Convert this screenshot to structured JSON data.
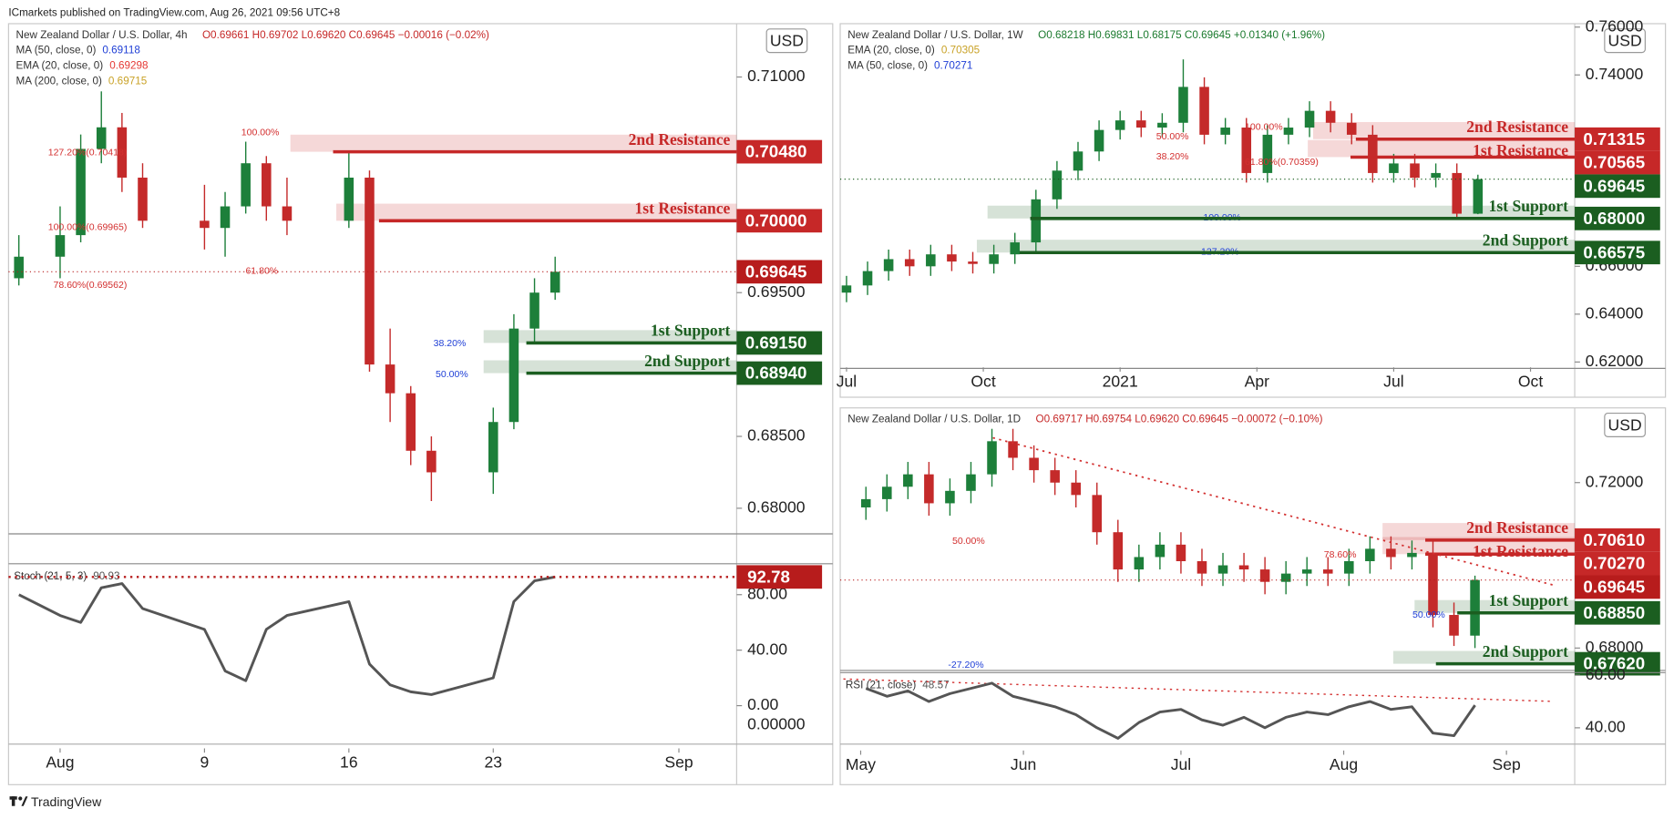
{
  "header": {
    "text": "ICmarkets published on TradingView.com, Aug 26, 2021 09:56 UTC+8",
    "footer": "TradingView"
  },
  "chart_data": [
    {
      "type": "candlestick",
      "title": "New Zealand Dollar / U.S. Dollar, 4h",
      "ohlc_text": "O0.69661 H0.69702 L0.69620 C0.69645 −0.00016 (−0.02%)",
      "ohlc_color": "#c62828",
      "currency": "USD",
      "legend": [
        {
          "name": "MA (50, close, 0)",
          "value": 0.69118,
          "color": "#1f3fd6"
        },
        {
          "name": "EMA (20, close, 0)",
          "value": 0.69298,
          "color": "#e53935"
        },
        {
          "name": "MA (200, close, 0)",
          "value": 0.69715,
          "color": "#c9a227"
        }
      ],
      "up_color": "#1d7f3a",
      "down_color": "#c42a2a",
      "x": [
        0,
        2,
        3,
        4,
        5,
        6,
        9,
        10,
        11,
        12,
        13,
        16,
        17,
        18,
        19,
        20,
        23,
        24,
        25,
        26
      ],
      "open": [
        0.696,
        0.6975,
        0.699,
        0.705,
        0.7065,
        0.703,
        0.7,
        0.6995,
        0.701,
        0.704,
        0.701,
        0.7,
        0.703,
        0.69,
        0.688,
        0.684,
        0.6825,
        0.686,
        0.6925,
        0.695
      ],
      "high": [
        0.699,
        0.701,
        0.706,
        0.709,
        0.7075,
        0.704,
        0.7025,
        0.702,
        0.7055,
        0.7045,
        0.703,
        0.7048,
        0.7035,
        0.6925,
        0.6885,
        0.685,
        0.687,
        0.6935,
        0.696,
        0.6975
      ],
      "low": [
        0.6955,
        0.696,
        0.6985,
        0.704,
        0.702,
        0.6995,
        0.698,
        0.6975,
        0.7005,
        0.7,
        0.699,
        0.6995,
        0.6895,
        0.686,
        0.683,
        0.6805,
        0.681,
        0.6855,
        0.6915,
        0.6945
      ],
      "close": [
        0.6975,
        0.699,
        0.705,
        0.7065,
        0.703,
        0.7,
        0.6995,
        0.701,
        0.704,
        0.701,
        0.7,
        0.703,
        0.69,
        0.688,
        0.684,
        0.6825,
        0.686,
        0.6925,
        0.695,
        0.69645
      ],
      "xlim": [
        -0.5,
        34.8
      ],
      "xticks": [
        {
          "value": 2,
          "label": "Aug"
        },
        {
          "value": 9,
          "label": "9"
        },
        {
          "value": 16,
          "label": "16"
        },
        {
          "value": 23,
          "label": "23"
        },
        {
          "value": 32,
          "label": "Sep"
        }
      ],
      "ylim": [
        0.67822,
        0.71371
      ],
      "yticks": [
        {
          "value": 0.71,
          "label": "0.71000"
        },
        {
          "value": 0.695,
          "label": "0.69500"
        },
        {
          "value": 0.685,
          "label": "0.68500"
        },
        {
          "value": 0.68,
          "label": "0.68000"
        }
      ],
      "grid": false,
      "levels": [
        {
          "name": "2nd Resistance",
          "value": 0.7048,
          "label": "0.70480",
          "color": "#c62828"
        },
        {
          "name": "1st Resistance",
          "value": 0.7,
          "label": "0.70000",
          "color": "#c62828"
        },
        {
          "name": "1st Support",
          "value": 0.6915,
          "label": "0.69150",
          "color": "#1b5e20"
        },
        {
          "name": "2nd Support",
          "value": 0.6894,
          "label": "0.68940",
          "color": "#1b5e20"
        }
      ],
      "last_price": {
        "value": 0.69645,
        "label": "0.69645",
        "color": "#b71c1c"
      },
      "annotations": [
        {
          "text": "100.00%",
          "color": "#d32f2f"
        },
        {
          "text": "127.20%(0.70418)",
          "color": "#d32f2f"
        },
        {
          "text": "100.00%(0.69965)",
          "color": "#d32f2f"
        },
        {
          "text": "78.60%(0.69562)",
          "color": "#d32f2f"
        },
        {
          "text": "61.80%",
          "color": "#d32f2f"
        },
        {
          "text": "38.20%",
          "color": "#1f3fd6"
        },
        {
          "text": "50.00%",
          "color": "#1f3fd6"
        }
      ],
      "indicator": {
        "type": "line",
        "name": "Stoch (21, 5, 3)",
        "legend_value": 90.93,
        "color": "#555555",
        "last_marker": true,
        "marker_color": "#b71c1c",
        "values": [
          80,
          65,
          60,
          85,
          88,
          70,
          55,
          25,
          18,
          55,
          65,
          75,
          30,
          15,
          10,
          8,
          20,
          75,
          90,
          92.78
        ],
        "ylim": [
          -27.7,
          102.3
        ],
        "yticks": [
          {
            "value": 80,
            "label": "80.00"
          },
          {
            "value": 40,
            "label": "40.00"
          },
          {
            "value": 0,
            "label": "0.00"
          }
        ],
        "extra_tick_label": "0.00000"
      }
    },
    {
      "type": "candlestick",
      "title": "New Zealand Dollar / U.S. Dollar, 1W",
      "ohlc_text": "O0.68218 H0.69831 L0.68175 C0.69645 +0.01340 (+1.96%)",
      "ohlc_color": "#1b7a2e",
      "currency": "USD",
      "legend": [
        {
          "name": "EMA (20, close, 0)",
          "value": 0.70305,
          "color": "#c9a227"
        },
        {
          "name": "MA (50, close, 0)",
          "value": 0.70271,
          "color": "#1f3fd6"
        }
      ],
      "up_color": "#1d7f3a",
      "down_color": "#c42a2a",
      "x": [
        0,
        2,
        4,
        6,
        8,
        10,
        12,
        14,
        16,
        18,
        20,
        22,
        24,
        26,
        28,
        30,
        32,
        34,
        36,
        38,
        40,
        42,
        44,
        46,
        48,
        50,
        52,
        54,
        56,
        58,
        60
      ],
      "open": [
        0.649,
        0.652,
        0.658,
        0.663,
        0.66,
        0.665,
        0.662,
        0.661,
        0.665,
        0.67,
        0.688,
        0.7,
        0.708,
        0.717,
        0.721,
        0.718,
        0.72,
        0.735,
        0.715,
        0.718,
        0.699,
        0.715,
        0.718,
        0.725,
        0.72,
        0.715,
        0.699,
        0.703,
        0.697,
        0.699,
        0.682
      ],
      "high": [
        0.656,
        0.662,
        0.667,
        0.667,
        0.669,
        0.669,
        0.666,
        0.669,
        0.674,
        0.692,
        0.704,
        0.712,
        0.721,
        0.725,
        0.725,
        0.724,
        0.7465,
        0.739,
        0.722,
        0.722,
        0.719,
        0.722,
        0.729,
        0.729,
        0.724,
        0.719,
        0.707,
        0.707,
        0.703,
        0.703,
        0.6983
      ],
      "low": [
        0.645,
        0.648,
        0.654,
        0.656,
        0.656,
        0.658,
        0.657,
        0.657,
        0.661,
        0.666,
        0.684,
        0.696,
        0.704,
        0.713,
        0.714,
        0.714,
        0.716,
        0.711,
        0.711,
        0.695,
        0.695,
        0.711,
        0.714,
        0.716,
        0.711,
        0.695,
        0.695,
        0.693,
        0.693,
        0.6805,
        0.6818
      ],
      "close": [
        0.652,
        0.658,
        0.663,
        0.66,
        0.665,
        0.662,
        0.661,
        0.665,
        0.67,
        0.688,
        0.7,
        0.708,
        0.717,
        0.721,
        0.718,
        0.72,
        0.735,
        0.715,
        0.718,
        0.699,
        0.715,
        0.718,
        0.725,
        0.72,
        0.715,
        0.699,
        0.703,
        0.697,
        0.699,
        0.682,
        0.69645
      ],
      "xlim": [
        -0.6,
        69.2
      ],
      "xticks": [
        {
          "value": 0,
          "label": "Jul"
        },
        {
          "value": 13,
          "label": "Oct"
        },
        {
          "value": 26,
          "label": "2021"
        },
        {
          "value": 39,
          "label": "Apr"
        },
        {
          "value": 52,
          "label": "Jul"
        },
        {
          "value": 65,
          "label": "Oct"
        }
      ],
      "ylim": [
        0.61732,
        0.76143
      ],
      "yticks": [
        {
          "value": 0.76,
          "label": "0.76000"
        },
        {
          "value": 0.74,
          "label": "0.74000"
        },
        {
          "value": 0.66,
          "label": "0.66000"
        },
        {
          "value": 0.64,
          "label": "0.64000"
        },
        {
          "value": 0.62,
          "label": "0.62000"
        }
      ],
      "grid": false,
      "levels": [
        {
          "name": "2nd Resistance",
          "value": 0.71315,
          "label": "0.71315",
          "color": "#c62828"
        },
        {
          "name": "1st Resistance",
          "value": 0.70565,
          "label": "0.70565",
          "color": "#c62828"
        },
        {
          "name": "1st Support",
          "value": 0.68,
          "label": "0.68000",
          "color": "#1b5e20"
        },
        {
          "name": "2nd Support",
          "value": 0.66575,
          "label": "0.66575",
          "color": "#1b5e20"
        }
      ],
      "last_price": {
        "value": 0.69645,
        "label": "0.69645",
        "color": "#1b5e20"
      },
      "annotations": [
        {
          "text": "50.00%",
          "color": "#d32f2f"
        },
        {
          "text": "38.20%",
          "color": "#d32f2f"
        },
        {
          "text": "100.00%",
          "color": "#d32f2f"
        },
        {
          "text": "61.80%(0.70359)",
          "color": "#d32f2f"
        },
        {
          "text": "100.00%",
          "color": "#1f3fd6"
        },
        {
          "text": "127.20%",
          "color": "#1f3fd6"
        }
      ]
    },
    {
      "type": "candlestick",
      "title": "New Zealand Dollar / U.S. Dollar, 1D",
      "ohlc_text": "O0.69717 H0.69754 L0.69620 C0.69645 −0.00072 (−0.10%)",
      "ohlc_color": "#c62828",
      "currency": "USD",
      "legend": [],
      "up_color": "#1d7f3a",
      "down_color": "#c42a2a",
      "x": [
        1,
        5,
        9,
        13,
        17,
        21,
        25,
        29,
        33,
        37,
        41,
        45,
        49,
        53,
        57,
        61,
        65,
        69,
        73,
        77,
        81,
        85,
        89,
        93,
        97,
        101,
        105,
        109,
        113,
        117
      ],
      "open": [
        0.714,
        0.716,
        0.719,
        0.722,
        0.715,
        0.718,
        0.722,
        0.73,
        0.726,
        0.723,
        0.72,
        0.717,
        0.708,
        0.699,
        0.702,
        0.705,
        0.701,
        0.698,
        0.7,
        0.699,
        0.696,
        0.698,
        0.699,
        0.698,
        0.701,
        0.704,
        0.702,
        0.703,
        0.688,
        0.683
      ],
      "high": [
        0.719,
        0.722,
        0.725,
        0.725,
        0.721,
        0.725,
        0.733,
        0.733,
        0.729,
        0.726,
        0.723,
        0.72,
        0.711,
        0.705,
        0.708,
        0.708,
        0.704,
        0.703,
        0.703,
        0.702,
        0.701,
        0.702,
        0.702,
        0.704,
        0.707,
        0.707,
        0.706,
        0.706,
        0.691,
        0.6975
      ],
      "low": [
        0.711,
        0.713,
        0.716,
        0.712,
        0.712,
        0.715,
        0.719,
        0.723,
        0.72,
        0.717,
        0.714,
        0.705,
        0.696,
        0.696,
        0.699,
        0.698,
        0.695,
        0.695,
        0.696,
        0.693,
        0.693,
        0.695,
        0.695,
        0.695,
        0.698,
        0.699,
        0.699,
        0.685,
        0.6805,
        0.68
      ],
      "close": [
        0.716,
        0.719,
        0.722,
        0.715,
        0.718,
        0.722,
        0.73,
        0.726,
        0.723,
        0.72,
        0.717,
        0.708,
        0.699,
        0.702,
        0.705,
        0.701,
        0.698,
        0.7,
        0.699,
        0.696,
        0.698,
        0.699,
        0.698,
        0.701,
        0.704,
        0.702,
        0.703,
        0.688,
        0.683,
        0.69645
      ],
      "xlim": [
        -3.9,
        136
      ],
      "xticks": [
        {
          "value": 0,
          "label": "May"
        },
        {
          "value": 31,
          "label": "Jun"
        },
        {
          "value": 61,
          "label": "Jul"
        },
        {
          "value": 92,
          "label": "Aug"
        },
        {
          "value": 123,
          "label": "Sep"
        }
      ],
      "ylim": [
        0.67458,
        0.73806
      ],
      "yticks": [
        {
          "value": 0.72,
          "label": "0.72000"
        },
        {
          "value": 0.68,
          "label": "0.68000"
        }
      ],
      "grid": false,
      "levels": [
        {
          "name": "2nd Resistance",
          "value": 0.7061,
          "label": "0.70610",
          "color": "#c62828"
        },
        {
          "name": "1st Resistance",
          "value": 0.7027,
          "label": "0.70270",
          "color": "#c62828"
        },
        {
          "name": "1st Support",
          "value": 0.6885,
          "label": "0.68850",
          "color": "#1b5e20"
        },
        {
          "name": "2nd Support",
          "value": 0.6762,
          "label": "0.67620",
          "color": "#1b5e20"
        }
      ],
      "last_price": {
        "value": 0.69645,
        "label": "0.69645",
        "color": "#b71c1c"
      },
      "annotations": [
        {
          "text": "50.00%",
          "color": "#d32f2f"
        },
        {
          "text": "78.60%",
          "color": "#d32f2f"
        },
        {
          "text": "50.00%",
          "color": "#1f3fd6"
        },
        {
          "text": "-27.20%",
          "color": "#1f3fd6"
        }
      ],
      "indicator": {
        "type": "line",
        "name": "RSI (21, close)",
        "legend_value": 48.57,
        "color": "#555555",
        "last_marker": false,
        "values": [
          55,
          52,
          54,
          50,
          53,
          55,
          57,
          52,
          50,
          48,
          45,
          40,
          36,
          42,
          46,
          47,
          43,
          41,
          44,
          40,
          44,
          46,
          45,
          48,
          50,
          47,
          48,
          38,
          37,
          48.57
        ],
        "ylim": [
          33.8,
          61
        ],
        "yticks": [
          {
            "value": 60,
            "label": "60.00"
          },
          {
            "value": 40,
            "label": "40.00"
          }
        ]
      }
    }
  ]
}
